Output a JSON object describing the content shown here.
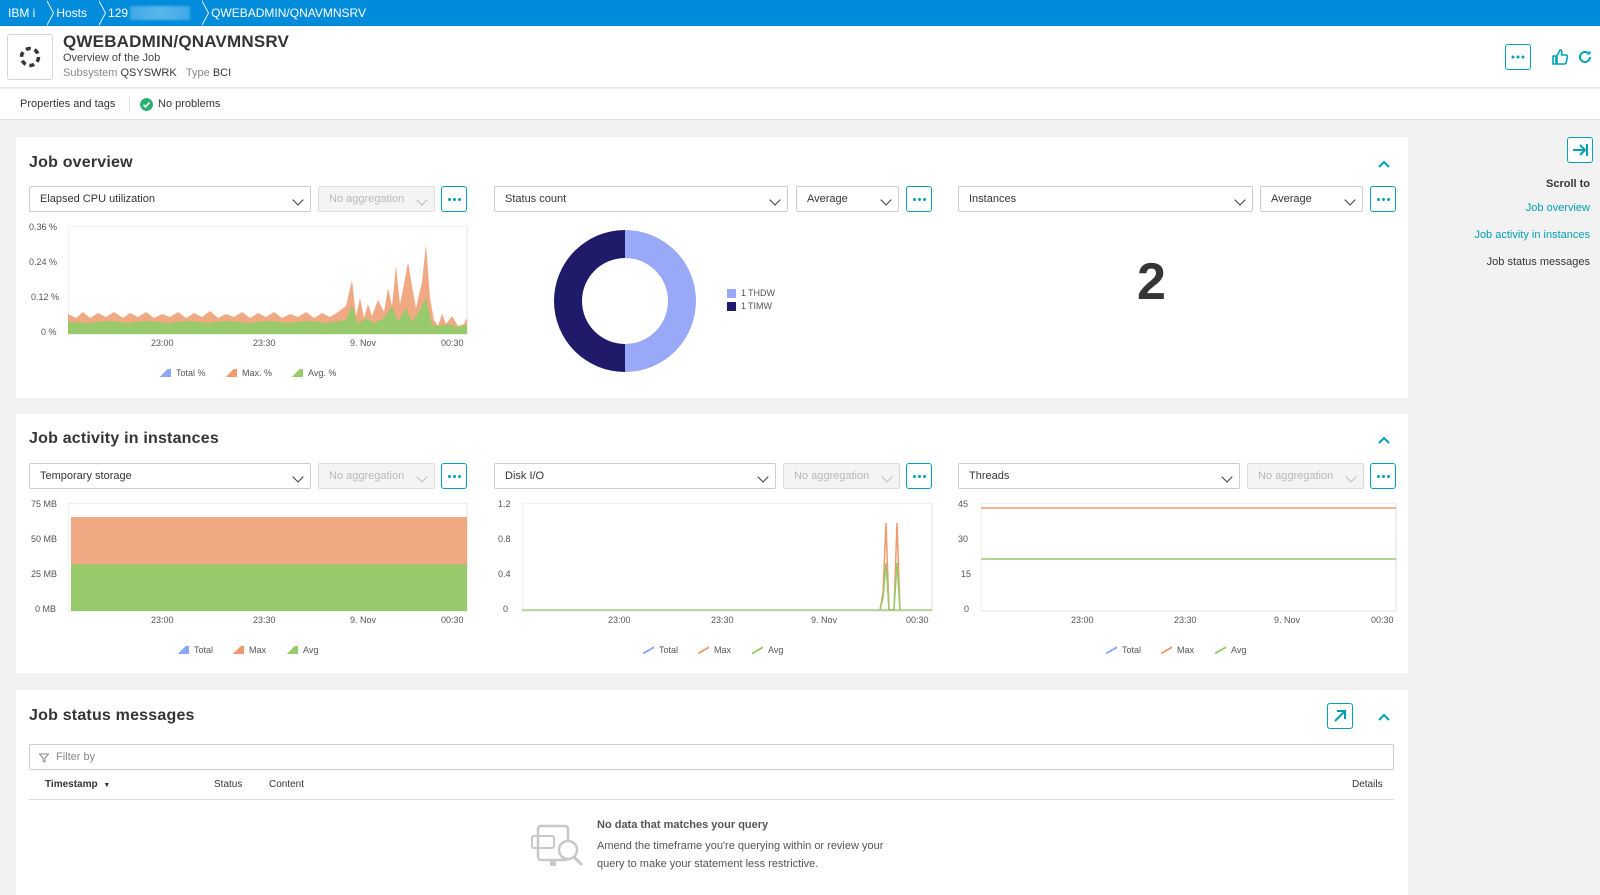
{
  "breadcrumb": {
    "items": [
      "IBM i",
      "Hosts",
      "129",
      "QWEBADMIN/QNAVMNSRV"
    ]
  },
  "header": {
    "title": "QWEBADMIN/QNAVMNSRV",
    "subtitle": "Overview of the Job",
    "subsystem_label": "Subsystem",
    "subsystem_value": "QSYSWRK",
    "type_label": "Type",
    "type_value": "BCI"
  },
  "propbar": {
    "properties_link": "Properties and tags",
    "status": "No problems"
  },
  "colors": {
    "accent": "#00a1b2",
    "breadcrumb_bg": "#008cdb",
    "total": "#8aa8f8",
    "max": "#ef9a6e",
    "avg": "#98c96a",
    "thdw": "#9aa8f8",
    "timw": "#1f1a6a",
    "ok": "#2ab06f"
  },
  "job_overview": {
    "title": "Job overview",
    "cpu": {
      "metric": "Elapsed CPU utilization",
      "aggregation": "No aggregation",
      "y_ticks": [
        "0.36 %",
        "0.24 %",
        "0.12 %",
        "0 %"
      ],
      "x_ticks": [
        "23:00",
        "23:30",
        "9. Nov",
        "00:30"
      ],
      "legend": [
        "Total %",
        "Max. %",
        "Avg. %"
      ]
    },
    "status": {
      "metric": "Status count",
      "aggregation": "Average",
      "legend": [
        {
          "count": "1",
          "label": "THDW"
        },
        {
          "count": "1",
          "label": "TIMW"
        }
      ]
    },
    "instances": {
      "metric": "Instances",
      "aggregation": "Average",
      "value": "2"
    }
  },
  "job_activity": {
    "title": "Job activity in instances",
    "storage": {
      "metric": "Temporary storage",
      "aggregation": "No aggregation",
      "y_ticks": [
        "75 MB",
        "50 MB",
        "25 MB",
        "0 MB"
      ],
      "x_ticks": [
        "23:00",
        "23:30",
        "9. Nov",
        "00:30"
      ],
      "legend": [
        "Total",
        "Max",
        "Avg"
      ]
    },
    "disk": {
      "metric": "Disk I/O",
      "aggregation": "No aggregation",
      "y_ticks": [
        "1.2",
        "0.8",
        "0.4",
        "0"
      ],
      "x_ticks": [
        "23:00",
        "23:30",
        "9. Nov",
        "00:30"
      ],
      "legend": [
        "Total",
        "Max",
        "Avg"
      ]
    },
    "threads": {
      "metric": "Threads",
      "aggregation": "No aggregation",
      "y_ticks": [
        "45",
        "30",
        "15",
        "0"
      ],
      "x_ticks": [
        "23:00",
        "23:30",
        "9. Nov",
        "00:30"
      ],
      "legend": [
        "Total",
        "Max",
        "Avg"
      ]
    }
  },
  "job_status": {
    "title": "Job status messages",
    "filter_placeholder": "Filter by",
    "columns": [
      "Timestamp",
      "Status",
      "Content",
      "Details"
    ],
    "empty_title": "No data that matches your query",
    "empty_desc": "Amend the timeframe you're querying within or review your query to make your statement less restrictive."
  },
  "sidebar": {
    "scroll_to": "Scroll to",
    "links": [
      "Job overview",
      "Job activity in instances",
      "Job status messages"
    ]
  }
}
